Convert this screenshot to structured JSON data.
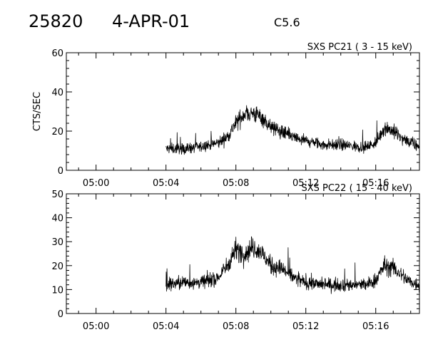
{
  "header": {
    "event_id": "25820",
    "date": "4-APR-01",
    "flare_class": "C5.6"
  },
  "chart_data": [
    {
      "type": "line",
      "title": "SXS PC21  (  3 - 15 keV)",
      "ylabel": "CTS/SEC",
      "xlabel": "",
      "x_unit": "minutes after 05:00",
      "xlim": [
        -1.7,
        18.5
      ],
      "ylim": [
        0,
        60
      ],
      "yticks": [
        0,
        20,
        40,
        60
      ],
      "xticks": [
        {
          "value": 0,
          "label": "05:00"
        },
        {
          "value": 4,
          "label": "05:04"
        },
        {
          "value": 8,
          "label": "05:08"
        },
        {
          "value": 12,
          "label": "05:12"
        },
        {
          "value": 16,
          "label": "05:16"
        }
      ],
      "series": [
        {
          "x": [
            4.0,
            5.0,
            6.0,
            7.0,
            7.5,
            8.0,
            8.5,
            9.0,
            9.5,
            10.0,
            10.5,
            11.0,
            11.5,
            12.0,
            13.0,
            14.0,
            15.0,
            15.5,
            16.0,
            16.5,
            17.0,
            17.5,
            18.0,
            18.5
          ],
          "values": [
            11,
            11,
            12,
            14,
            17,
            24,
            29,
            29,
            27,
            22,
            20,
            18,
            16,
            15,
            13,
            13,
            12,
            12,
            14,
            22,
            20,
            16,
            14,
            12
          ]
        }
      ]
    },
    {
      "type": "line",
      "title": "SXS PC22  ( 15 - 40 keV)",
      "ylabel": "",
      "xlabel": "",
      "x_unit": "minutes after 05:00",
      "xlim": [
        -1.7,
        18.5
      ],
      "ylim": [
        0,
        50
      ],
      "yticks": [
        0,
        10,
        20,
        30,
        40,
        50
      ],
      "xticks": [
        {
          "value": 0,
          "label": "05:00"
        },
        {
          "value": 4,
          "label": "05:04"
        },
        {
          "value": 8,
          "label": "05:08"
        },
        {
          "value": 12,
          "label": "05:12"
        },
        {
          "value": 16,
          "label": "05:16"
        }
      ],
      "series": [
        {
          "x": [
            4.0,
            5.0,
            6.0,
            7.0,
            7.5,
            8.0,
            8.5,
            9.0,
            9.5,
            10.0,
            10.5,
            11.0,
            11.5,
            12.0,
            13.0,
            14.0,
            15.0,
            15.5,
            16.0,
            16.5,
            17.0,
            17.5,
            18.0,
            18.5
          ],
          "values": [
            12,
            13,
            13,
            15,
            20,
            27,
            25,
            28,
            25,
            20,
            19,
            17,
            14,
            13,
            12,
            12,
            12,
            12,
            14,
            20,
            19,
            16,
            13,
            12
          ]
        }
      ]
    }
  ]
}
